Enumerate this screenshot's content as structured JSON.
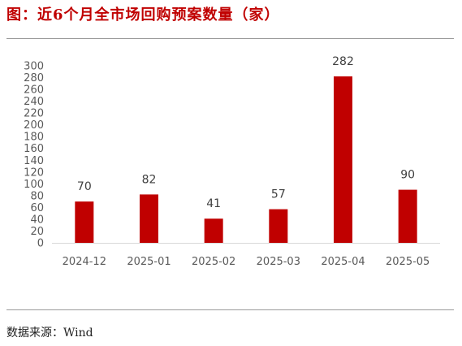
{
  "title": "图：近6个月全市场回购预案数量（家）",
  "source": "数据来源：Wind",
  "colors": {
    "bar": "#c00000",
    "title": "#c00000",
    "axis": "#d9d9d9",
    "text": "#595959"
  },
  "chart_data": {
    "type": "bar",
    "title": "图：近6个月全市场回购预案数量（家）",
    "categories": [
      "2024-12",
      "2025-01",
      "2025-02",
      "2025-03",
      "2025-04",
      "2025-05"
    ],
    "values": [
      70,
      82,
      41,
      57,
      282,
      90
    ],
    "data_labels": [
      "70",
      "82",
      "41",
      "57",
      "282",
      "90"
    ],
    "ylim": [
      0,
      300
    ],
    "yticks": [
      "0",
      "20",
      "40",
      "60",
      "80",
      "100",
      "120",
      "140",
      "160",
      "180",
      "200",
      "220",
      "240",
      "260",
      "280",
      "300"
    ],
    "xlabel": "",
    "ylabel": "",
    "grid": false,
    "legend": "none"
  }
}
